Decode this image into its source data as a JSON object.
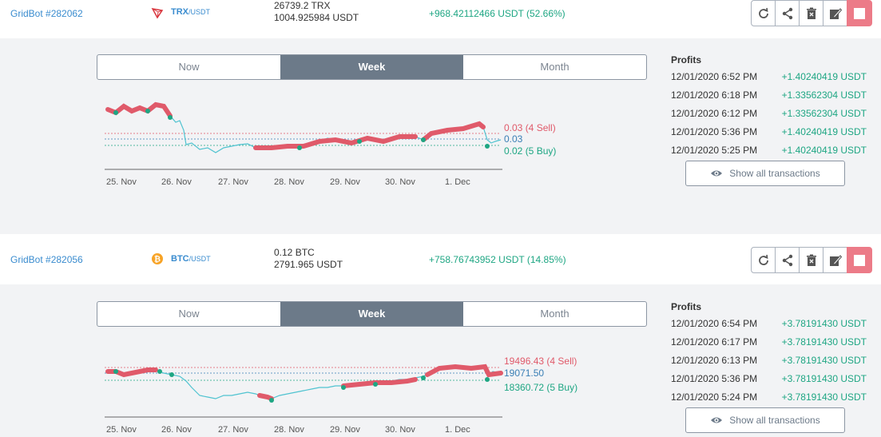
{
  "bots": [
    {
      "name": "GridBot #282062",
      "coin_icon": "trx-icon",
      "pair_base": "TRX",
      "pair_quote": "/USDT",
      "amount_base": "26739.2 TRX",
      "amount_quote": "1004.925984 USDT",
      "profit": "+968.42112466 USDT (52.66%)",
      "tabs": [
        "Now",
        "Week",
        "Month"
      ],
      "active_tab": "Week",
      "profits_title": "Profits",
      "profits": [
        {
          "date": "12/01/2020 6:52 PM",
          "value": "+1.40240419 USDT"
        },
        {
          "date": "12/01/2020 6:18 PM",
          "value": "+1.33562304 USDT"
        },
        {
          "date": "12/01/2020 6:12 PM",
          "value": "+1.33562304 USDT"
        },
        {
          "date": "12/01/2020 5:36 PM",
          "value": "+1.40240419 USDT"
        },
        {
          "date": "12/01/2020 5:25 PM",
          "value": "+1.40240419 USDT"
        }
      ],
      "show_all": "Show all transactions",
      "chart": {
        "sell_label": "0.03 (4 Sell)",
        "mid_label": "0.03",
        "buy_label": "0.02 (5 Buy)",
        "x_ticks": [
          "25. Nov",
          "26. Nov",
          "27. Nov",
          "28. Nov",
          "29. Nov",
          "30. Nov",
          "1. Dec"
        ]
      }
    },
    {
      "name": "GridBot #282056",
      "coin_icon": "btc-icon",
      "pair_base": "BTC",
      "pair_quote": "/USDT",
      "amount_base": "0.12 BTC",
      "amount_quote": "2791.965 USDT",
      "profit": "+758.76743952 USDT (14.85%)",
      "tabs": [
        "Now",
        "Week",
        "Month"
      ],
      "active_tab": "Week",
      "profits_title": "Profits",
      "profits": [
        {
          "date": "12/01/2020 6:54 PM",
          "value": "+3.78191430 USDT"
        },
        {
          "date": "12/01/2020 6:17 PM",
          "value": "+3.78191430 USDT"
        },
        {
          "date": "12/01/2020 6:13 PM",
          "value": "+3.78191430 USDT"
        },
        {
          "date": "12/01/2020 5:36 PM",
          "value": "+3.78191430 USDT"
        },
        {
          "date": "12/01/2020 5:24 PM",
          "value": "+3.78191430 USDT"
        }
      ],
      "show_all": "Show all transactions",
      "chart": {
        "sell_label": "19496.43 (4 Sell)",
        "mid_label": "19071.50",
        "buy_label": "18360.72 (5 Buy)",
        "x_ticks": [
          "25. Nov",
          "26. Nov",
          "27. Nov",
          "28. Nov",
          "29. Nov",
          "30. Nov",
          "1. Dec"
        ]
      }
    }
  ],
  "colors": {
    "sell": "#e05a6a",
    "buy": "#1ea683",
    "mid": "#3a7fb5",
    "line": "#4fc3d0",
    "accent": "#3a8ccf"
  }
}
